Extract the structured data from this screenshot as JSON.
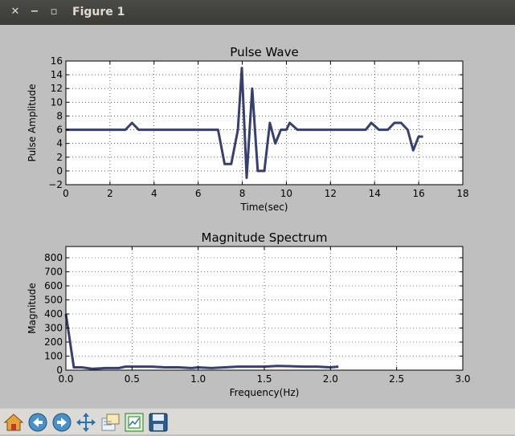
{
  "window": {
    "title": "Figure 1",
    "close_glyph": "✕",
    "minimize_glyph": "−",
    "maximize_glyph": "▫"
  },
  "toolbar": {
    "buttons": [
      {
        "icon": "home-icon"
      },
      {
        "icon": "back-arrow-icon"
      },
      {
        "icon": "forward-arrow-icon"
      },
      {
        "icon": "pan-move-icon"
      },
      {
        "icon": "zoom-rect-icon"
      },
      {
        "icon": "subplots-config-icon"
      },
      {
        "icon": "save-floppy-icon"
      }
    ]
  },
  "colors": {
    "line": "#363f6e",
    "plot_bg": "#ffffff",
    "figure_bg": "#bfbfbf"
  },
  "chart_data": [
    {
      "type": "line",
      "title": "Pulse Wave",
      "xlabel": "Time(sec)",
      "ylabel": "Pulse Amplitude",
      "xlim": [
        0,
        18
      ],
      "ylim": [
        -2,
        16
      ],
      "xticks": [
        0,
        2,
        4,
        6,
        8,
        10,
        12,
        14,
        16,
        18
      ],
      "yticks": [
        -2,
        0,
        2,
        4,
        6,
        8,
        10,
        12,
        14,
        16
      ],
      "ytick_labels": [
        "−2",
        "0",
        "2",
        "4",
        "6",
        "8",
        "10",
        "12",
        "14",
        "16"
      ],
      "grid": true,
      "series": [
        {
          "x": [
            0,
            2.7,
            3.0,
            3.3,
            6.9,
            7.2,
            7.5,
            7.8,
            7.98,
            8.2,
            8.45,
            8.7,
            9.0,
            9.25,
            9.5,
            9.75,
            10.0,
            10.15,
            10.5,
            13.6,
            13.85,
            14.2,
            14.6,
            14.9,
            15.2,
            15.5,
            15.75,
            16.0,
            16.2
          ],
          "y": [
            6,
            6,
            7,
            6,
            6,
            1,
            1,
            6,
            15,
            -1,
            12,
            0,
            0,
            7,
            4,
            6,
            6,
            7,
            6,
            6,
            7,
            6,
            6,
            7,
            7,
            6,
            3,
            5,
            5
          ]
        }
      ]
    },
    {
      "type": "line",
      "title": "Magnitude Spectrum",
      "xlabel": "Frequency(Hz)",
      "ylabel": "Magnitude",
      "xlim": [
        0,
        3.0
      ],
      "ylim": [
        0,
        880
      ],
      "xticks": [
        0,
        0.5,
        1.0,
        1.5,
        2.0,
        2.5,
        3.0
      ],
      "xtick_labels": [
        "0.0",
        "0.5",
        "1.0",
        "1.5",
        "2.0",
        "2.5",
        "3.0"
      ],
      "yticks": [
        0,
        100,
        200,
        300,
        400,
        500,
        600,
        700,
        800
      ],
      "grid": true,
      "series": [
        {
          "x": [
            0,
            0.06,
            0.12,
            0.2,
            0.3,
            0.4,
            0.45,
            0.55,
            0.65,
            0.75,
            0.85,
            0.95,
            1.0,
            1.1,
            1.2,
            1.3,
            1.4,
            1.5,
            1.6,
            1.7,
            1.8,
            1.9,
            2.0,
            2.06
          ],
          "y": [
            400,
            20,
            20,
            10,
            15,
            15,
            25,
            25,
            25,
            20,
            20,
            15,
            20,
            15,
            20,
            25,
            25,
            25,
            30,
            28,
            25,
            25,
            20,
            25
          ]
        }
      ]
    }
  ]
}
